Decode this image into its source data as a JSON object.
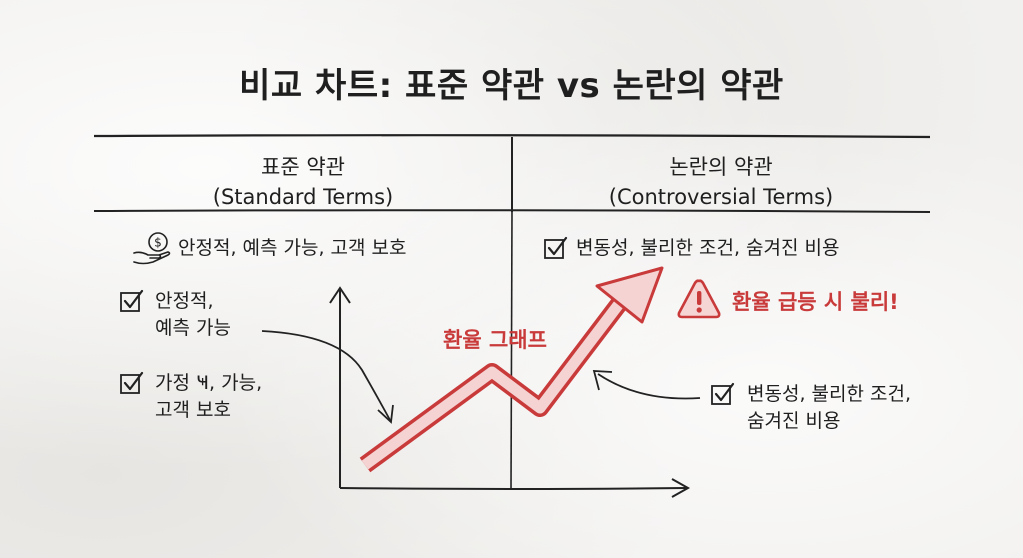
{
  "title": "비교 차트: 표준 약관 vs 논란의 약관",
  "left_header": {
    "line1": "표준 약관",
    "line2": "(Standard Terms)"
  },
  "right_header": {
    "line1": "논란의 약관",
    "line2": "(Controversial Terms)"
  },
  "left_summary": "안정적, 예측 가능, 고객 보호",
  "right_summary": "변동성, 불리한 조건, 숨겨진 비용",
  "left_note_1": {
    "line1": "안정적,",
    "line2": "예측 가능"
  },
  "left_note_2": {
    "line1": "가정 Ҹ, 가능,",
    "line2": "고객 보호"
  },
  "graph_label": "환율 그래프",
  "warning": "환율 급등 시 불리!",
  "right_note": {
    "line1": "변동성, 불리한 조건,",
    "line2": "숨겨진 비용"
  },
  "colors": {
    "accent": "#c93a3a",
    "ink": "#1f1f1f"
  },
  "icons": {
    "left_summary": "money-hand-icon",
    "checks": "checkbox-icon",
    "warning": "warning-triangle-icon"
  }
}
